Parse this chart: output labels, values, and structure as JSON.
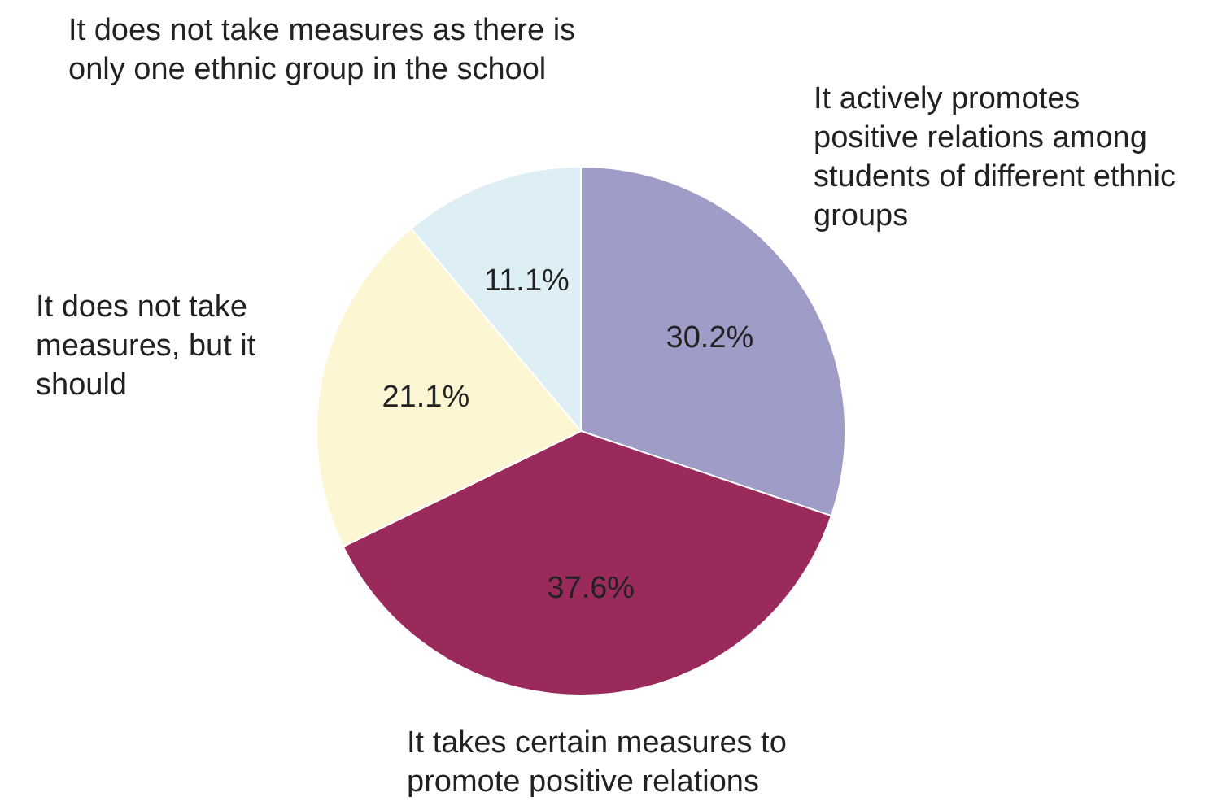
{
  "chart_data": {
    "type": "pie",
    "categories": [
      "It actively promotes positive relations among students of different ethnic groups",
      "It takes certain measures to promote positive relations",
      "It does not take measures, but it should",
      "It does not take measures as there is only one ethnic group in the school"
    ],
    "values": [
      30.2,
      37.6,
      21.1,
      11.1
    ],
    "value_labels": [
      "30.2%",
      "37.6%",
      "21.1%",
      "11.1%"
    ],
    "colors": [
      "#9f9cc8",
      "#9b2a5c",
      "#fdf6d3",
      "#ddeef5"
    ],
    "legend": false
  }
}
